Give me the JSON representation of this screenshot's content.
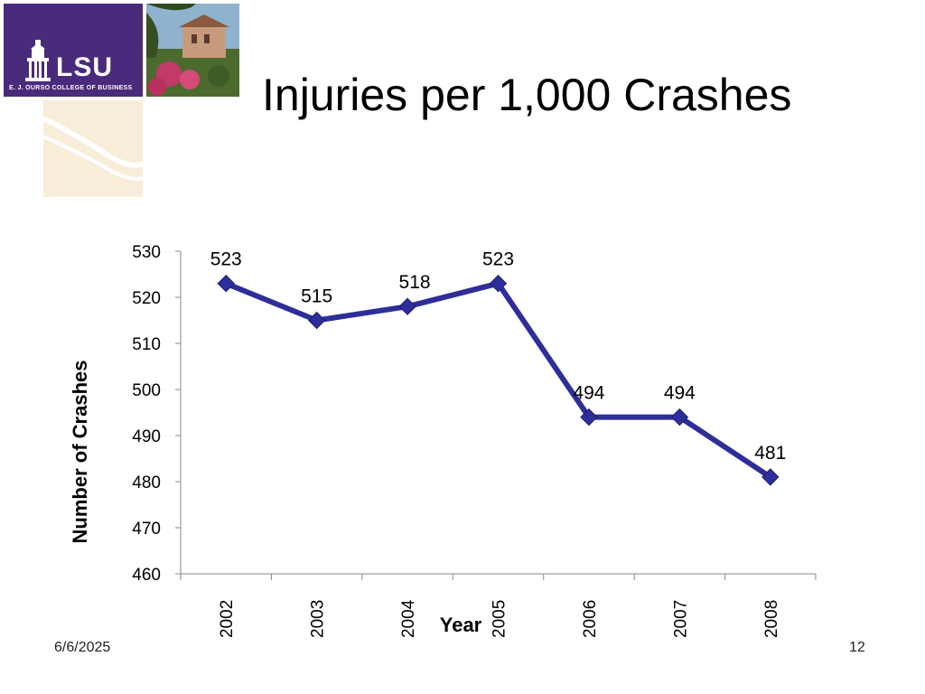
{
  "header": {
    "title": "Injuries per 1,000 Crashes",
    "logo_text": "LSU",
    "logo_subtitle": "E. J. OURSO COLLEGE OF BUSINESS"
  },
  "footer": {
    "date": "6/6/2025",
    "page_number": "12"
  },
  "colors": {
    "series": "#2e2e9a",
    "logo_purple": "#4a2a7a"
  },
  "chart_data": {
    "type": "line",
    "categories": [
      "2002",
      "2003",
      "2004",
      "2005",
      "2006",
      "2007",
      "2008"
    ],
    "series": [
      {
        "values": [
          523,
          515,
          518,
          523,
          494,
          494,
          481
        ]
      }
    ],
    "data_labels": [
      "523",
      "515",
      "518",
      "523",
      "494",
      "494",
      "481"
    ],
    "xlabel": "Year",
    "ylabel": "Number of Crashes",
    "ylim": [
      460,
      530
    ],
    "yticks": [
      460,
      470,
      480,
      490,
      500,
      510,
      520,
      530
    ],
    "grid": false,
    "legend": "none",
    "marker": "diamond"
  }
}
